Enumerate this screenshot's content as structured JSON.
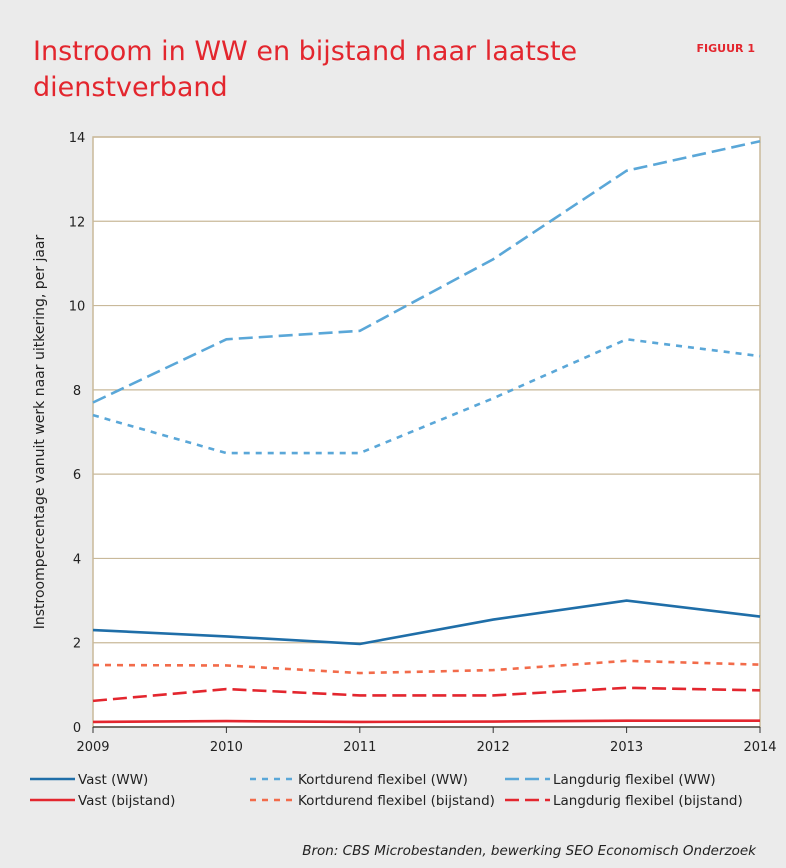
{
  "chart_data": {
    "type": "line",
    "title": "Instroom in WW en bijstand naar laatste dienstverband",
    "figure_label": "FIGUUR 1",
    "ylabel": "Instroompercentage vanuit werk naar uitkering, per jaar",
    "source": "Bron: CBS Microbestanden, bewerking SEO Economisch Onderzoek",
    "x": [
      2009,
      2010,
      2011,
      2012,
      2013,
      2014
    ],
    "xlim": [
      2009,
      2014
    ],
    "xticks": [
      2009,
      2010,
      2011,
      2012,
      2013,
      2014
    ],
    "ylim": [
      0,
      14
    ],
    "yticks": [
      0,
      2,
      4,
      6,
      8,
      10,
      12,
      14
    ],
    "grid": true,
    "series": [
      {
        "name": "Vast (WW)",
        "color": "#1f6ea8",
        "dash": "solid",
        "values": [
          2.3,
          2.15,
          1.97,
          2.55,
          3.0,
          2.62
        ]
      },
      {
        "name": "Kortdurend flexibel (WW)",
        "color": "#5aa7d8",
        "dash": "short",
        "values": [
          7.4,
          6.5,
          6.5,
          7.8,
          9.2,
          8.8
        ]
      },
      {
        "name": "Langdurig flexibel (WW)",
        "color": "#5aa7d8",
        "dash": "long",
        "values": [
          7.7,
          9.2,
          9.4,
          11.1,
          13.2,
          13.9
        ]
      },
      {
        "name": "Vast (bijstand)",
        "color": "#e3262e",
        "dash": "solid",
        "values": [
          0.12,
          0.14,
          0.12,
          0.13,
          0.15,
          0.15
        ]
      },
      {
        "name": "Kortdurend flexibel (bijstand)",
        "color": "#f26b4a",
        "dash": "short",
        "values": [
          1.47,
          1.46,
          1.28,
          1.35,
          1.57,
          1.48
        ]
      },
      {
        "name": "Langdurig flexibel (bijstand)",
        "color": "#e3262e",
        "dash": "long",
        "values": [
          0.62,
          0.9,
          0.75,
          0.75,
          0.93,
          0.87
        ]
      }
    ]
  }
}
